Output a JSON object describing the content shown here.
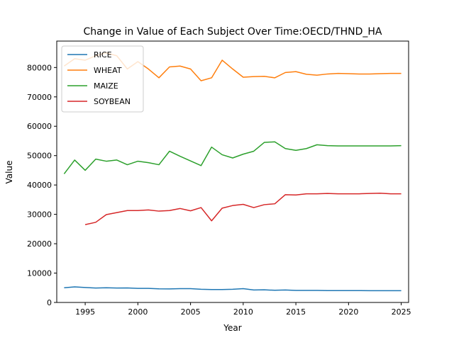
{
  "chart_data": {
    "type": "line",
    "title": "Change in Value of Each Subject Over Time:OECD/THND_HA",
    "xlabel": "Year",
    "ylabel": "Value",
    "xlim": [
      1992.3,
      2025.7
    ],
    "ylim": [
      0,
      89000
    ],
    "xticks": [
      1995,
      2000,
      2005,
      2010,
      2015,
      2020,
      2025
    ],
    "yticks": [
      0,
      10000,
      20000,
      30000,
      40000,
      50000,
      60000,
      70000,
      80000
    ],
    "grid": false,
    "legend_position": "top-left",
    "series": [
      {
        "name": "RICE",
        "color": "#1f77b4",
        "points": [
          [
            1993,
            5000
          ],
          [
            1994,
            5300
          ],
          [
            1995,
            5100
          ],
          [
            1996,
            4900
          ],
          [
            1997,
            5000
          ],
          [
            1998,
            4900
          ],
          [
            1999,
            4950
          ],
          [
            2000,
            4800
          ],
          [
            2001,
            4800
          ],
          [
            2002,
            4650
          ],
          [
            2003,
            4600
          ],
          [
            2004,
            4700
          ],
          [
            2005,
            4700
          ],
          [
            2006,
            4500
          ],
          [
            2007,
            4400
          ],
          [
            2008,
            4400
          ],
          [
            2009,
            4500
          ],
          [
            2010,
            4700
          ],
          [
            2011,
            4250
          ],
          [
            2012,
            4300
          ],
          [
            2013,
            4150
          ],
          [
            2014,
            4250
          ],
          [
            2015,
            4100
          ],
          [
            2016,
            4100
          ],
          [
            2017,
            4100
          ],
          [
            2018,
            4050
          ],
          [
            2019,
            4050
          ],
          [
            2020,
            4050
          ],
          [
            2021,
            4050
          ],
          [
            2022,
            4000
          ],
          [
            2023,
            4000
          ],
          [
            2024,
            4000
          ],
          [
            2025,
            4000
          ]
        ]
      },
      {
        "name": "WHEAT",
        "color": "#ff7f0e",
        "points": [
          [
            1993,
            80500
          ],
          [
            1994,
            83000
          ],
          [
            1995,
            82500
          ],
          [
            1996,
            84000
          ],
          [
            1997,
            85000
          ],
          [
            1998,
            84000
          ],
          [
            1999,
            79500
          ],
          [
            2000,
            82000
          ],
          [
            2001,
            79500
          ],
          [
            2002,
            76500
          ],
          [
            2003,
            80200
          ],
          [
            2004,
            80500
          ],
          [
            2005,
            79500
          ],
          [
            2006,
            75500
          ],
          [
            2007,
            76500
          ],
          [
            2008,
            82500
          ],
          [
            2009,
            79500
          ],
          [
            2010,
            76700
          ],
          [
            2011,
            76900
          ],
          [
            2012,
            77000
          ],
          [
            2013,
            76500
          ],
          [
            2014,
            78300
          ],
          [
            2015,
            78600
          ],
          [
            2016,
            77700
          ],
          [
            2017,
            77400
          ],
          [
            2018,
            77800
          ],
          [
            2019,
            78000
          ],
          [
            2020,
            77900
          ],
          [
            2021,
            77800
          ],
          [
            2022,
            77800
          ],
          [
            2023,
            77900
          ],
          [
            2024,
            78000
          ],
          [
            2025,
            78000
          ]
        ]
      },
      {
        "name": "MAIZE",
        "color": "#2ca02c",
        "points": [
          [
            1993,
            43800
          ],
          [
            1994,
            48500
          ],
          [
            1995,
            45000
          ],
          [
            1996,
            48800
          ],
          [
            1997,
            48100
          ],
          [
            1998,
            48500
          ],
          [
            1999,
            46900
          ],
          [
            2000,
            48100
          ],
          [
            2001,
            47600
          ],
          [
            2002,
            46900
          ],
          [
            2003,
            51500
          ],
          [
            2004,
            49800
          ],
          [
            2005,
            48200
          ],
          [
            2006,
            46600
          ],
          [
            2007,
            52900
          ],
          [
            2008,
            50300
          ],
          [
            2009,
            49200
          ],
          [
            2010,
            50500
          ],
          [
            2011,
            51500
          ],
          [
            2012,
            54500
          ],
          [
            2013,
            54700
          ],
          [
            2014,
            52400
          ],
          [
            2015,
            51800
          ],
          [
            2016,
            52400
          ],
          [
            2017,
            53700
          ],
          [
            2018,
            53400
          ],
          [
            2019,
            53300
          ],
          [
            2020,
            53300
          ],
          [
            2021,
            53300
          ],
          [
            2022,
            53300
          ],
          [
            2023,
            53300
          ],
          [
            2024,
            53300
          ],
          [
            2025,
            53400
          ]
        ]
      },
      {
        "name": "SOYBEAN",
        "color": "#d62728",
        "points": [
          [
            1995,
            26500
          ],
          [
            1996,
            27300
          ],
          [
            1997,
            29900
          ],
          [
            1998,
            30600
          ],
          [
            1999,
            31300
          ],
          [
            2000,
            31300
          ],
          [
            2001,
            31500
          ],
          [
            2002,
            31100
          ],
          [
            2003,
            31300
          ],
          [
            2004,
            32000
          ],
          [
            2005,
            31200
          ],
          [
            2006,
            32300
          ],
          [
            2007,
            27800
          ],
          [
            2008,
            32100
          ],
          [
            2009,
            33000
          ],
          [
            2010,
            33400
          ],
          [
            2011,
            32300
          ],
          [
            2012,
            33300
          ],
          [
            2013,
            33600
          ],
          [
            2014,
            36700
          ],
          [
            2015,
            36600
          ],
          [
            2016,
            37000
          ],
          [
            2017,
            37000
          ],
          [
            2018,
            37100
          ],
          [
            2019,
            37000
          ],
          [
            2020,
            37000
          ],
          [
            2021,
            37000
          ],
          [
            2022,
            37100
          ],
          [
            2023,
            37200
          ],
          [
            2024,
            37000
          ],
          [
            2025,
            37000
          ]
        ]
      }
    ]
  }
}
